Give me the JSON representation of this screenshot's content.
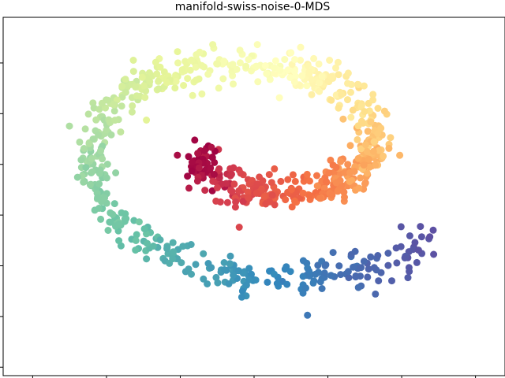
{
  "chart_data": {
    "type": "scatter",
    "title": "manifold-swiss-noise-0-MDS",
    "xlabel": "",
    "ylabel": "",
    "grid": false,
    "legend": "none",
    "colormap": "Spectral",
    "color_range": [
      0,
      1
    ],
    "x_tick_labels_visible": false,
    "y_tick_labels_visible": false,
    "xlim": [
      -1.7,
      1.7
    ],
    "ylim": [
      -1.05,
      1.07
    ],
    "x_ticks": [
      -1.5,
      -1.0,
      -0.5,
      0.0,
      0.5,
      1.0,
      1.5
    ],
    "y_ticks": [
      -1.0,
      -0.7,
      -0.4,
      -0.1,
      0.2,
      0.5,
      0.8
    ],
    "spiral": {
      "center": [
        0.05,
        0.3
      ],
      "rx": 1.4,
      "ry_base": 0.55,
      "ry_gain": 0.3,
      "theta_start": 3.5,
      "theta_span": 8.4,
      "radius_start": 0.32,
      "radius_end": 1.03,
      "point_count": 900,
      "jitter": 0.06
    }
  }
}
